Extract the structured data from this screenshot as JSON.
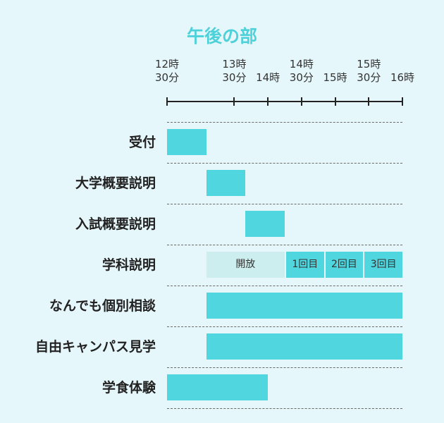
{
  "title": "午後の部",
  "axis": {
    "ticks": [
      {
        "line1": "12時",
        "line2": "30分",
        "minutes": 750,
        "rows": 2
      },
      {
        "line1": "13時",
        "line2": "30分",
        "minutes": 810,
        "rows": 2
      },
      {
        "line1": "14時",
        "line2": "",
        "minutes": 840,
        "rows": 1
      },
      {
        "line1": "14時",
        "line2": "30分",
        "minutes": 870,
        "rows": 2
      },
      {
        "line1": "15時",
        "line2": "",
        "minutes": 900,
        "rows": 1
      },
      {
        "line1": "15時",
        "line2": "30分",
        "minutes": 930,
        "rows": 2
      },
      {
        "line1": "16時",
        "line2": "",
        "minutes": 960,
        "rows": 1
      }
    ],
    "range_minutes": [
      750,
      960
    ]
  },
  "chart_data": {
    "type": "gantt",
    "title": "午後の部",
    "time_range": [
      "12:30",
      "16:00"
    ],
    "rows": [
      {
        "label": "受付",
        "start": "12:30",
        "end": "13:05"
      },
      {
        "label": "大学概要説明",
        "start": "13:05",
        "end": "13:40"
      },
      {
        "label": "入試概要説明",
        "start": "13:40",
        "end": "14:15"
      },
      {
        "label": "学科説明",
        "segments": [
          {
            "label": "開放",
            "start": "13:05",
            "end": "14:15",
            "kind": "open"
          },
          {
            "label": "1回目",
            "start": "14:15",
            "end": "14:50",
            "kind": "session"
          },
          {
            "label": "2回目",
            "start": "14:50",
            "end": "15:25",
            "kind": "session"
          },
          {
            "label": "3回目",
            "start": "15:25",
            "end": "16:00",
            "kind": "session"
          }
        ]
      },
      {
        "label": "なんでも個別相談",
        "start": "13:05",
        "end": "16:00"
      },
      {
        "label": "自由キャンパス見学",
        "start": "13:05",
        "end": "16:00"
      },
      {
        "label": "学食体験",
        "start": "12:30",
        "end": "14:00"
      }
    ]
  }
}
